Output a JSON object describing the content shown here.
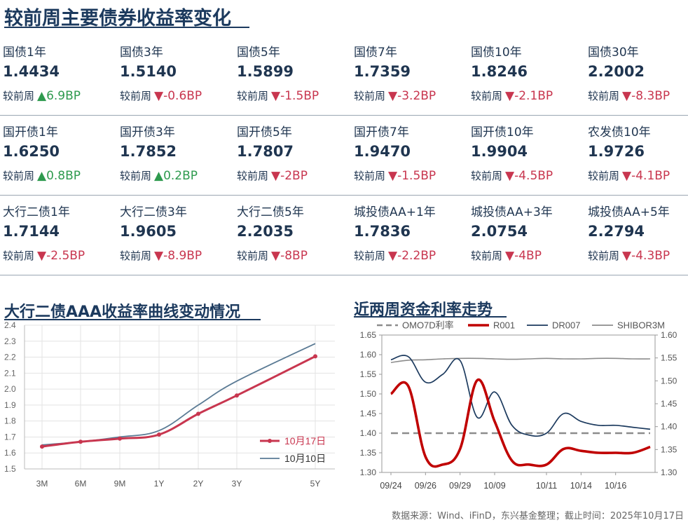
{
  "header": {
    "title": "较前周主要债券收益率变化"
  },
  "change_label": "较前周",
  "colors": {
    "up": "#2e9a4e",
    "down": "#c8364f",
    "navy": "#1c3a5e",
    "red": "#c8364f",
    "slate": "#5a7a94"
  },
  "bond_grid": [
    [
      {
        "name": "国债1年",
        "value": "1.4434",
        "direction": "up",
        "change": "▲6.9BP"
      },
      {
        "name": "国债3年",
        "value": "1.5140",
        "direction": "down",
        "change": "▼-0.6BP"
      },
      {
        "name": "国债5年",
        "value": "1.5899",
        "direction": "down",
        "change": "▼-1.5BP"
      },
      {
        "name": "国债7年",
        "value": "1.7359",
        "direction": "down",
        "change": "▼-3.2BP"
      },
      {
        "name": "国债10年",
        "value": "1.8246",
        "direction": "down",
        "change": "▼-2.1BP"
      },
      {
        "name": "国债30年",
        "value": "2.2002",
        "direction": "down",
        "change": "▼-8.3BP"
      }
    ],
    [
      {
        "name": "国开债1年",
        "value": "1.6250",
        "direction": "up",
        "change": "▲0.8BP"
      },
      {
        "name": "国开债3年",
        "value": "1.7852",
        "direction": "up",
        "change": "▲0.2BP"
      },
      {
        "name": "国开债5年",
        "value": "1.7807",
        "direction": "down",
        "change": "▼-2BP"
      },
      {
        "name": "国开债7年",
        "value": "1.9470",
        "direction": "down",
        "change": "▼-1.5BP"
      },
      {
        "name": "国开债10年",
        "value": "1.9904",
        "direction": "down",
        "change": "▼-4.5BP"
      },
      {
        "name": "农发债10年",
        "value": "1.9726",
        "direction": "down",
        "change": "▼-4.1BP"
      }
    ],
    [
      {
        "name": "大行二债1年",
        "value": "1.7144",
        "direction": "down",
        "change": "▼-2.5BP"
      },
      {
        "name": "大行二债3年",
        "value": "1.9605",
        "direction": "down",
        "change": "▼-8.9BP"
      },
      {
        "name": "大行二债5年",
        "value": "2.2035",
        "direction": "down",
        "change": "▼-8BP"
      },
      {
        "name": "城投债AA+1年",
        "value": "1.7836",
        "direction": "down",
        "change": "▼-2.2BP"
      },
      {
        "name": "城投债AA+3年",
        "value": "2.0754",
        "direction": "down",
        "change": "▼-4BP"
      },
      {
        "name": "城投债AA+5年",
        "value": "2.2794",
        "direction": "down",
        "change": "▼-4.3BP"
      }
    ]
  ],
  "footer": {
    "source": "数据来源：Wind、iFinD，东兴基金整理；截止时间：2025年10月17日"
  },
  "chart_data": [
    {
      "type": "line",
      "title": "大行二债AAA收益率曲线变动情况",
      "x_tick_labels": [
        "3M",
        "6M",
        "9M",
        "1Y",
        "2Y",
        "3Y",
        "5Y"
      ],
      "x_positions_years": [
        0.25,
        0.5,
        0.75,
        1,
        2,
        3,
        5
      ],
      "ylim": [
        1.5,
        2.4
      ],
      "y_ticks": [
        "1.5",
        "1.6",
        "1.7",
        "1.8",
        "1.9",
        "2.0",
        "2.1",
        "2.2",
        "2.3",
        "2.4"
      ],
      "grid": true,
      "legend_position": "bottom-right",
      "series": [
        {
          "name": "10月17日",
          "color": "#c8364f",
          "markers": true,
          "values": [
            1.64,
            1.67,
            1.69,
            1.715,
            1.845,
            1.96,
            2.205
          ]
        },
        {
          "name": "10月10日",
          "color": "#5a7a94",
          "markers": false,
          "values": [
            1.65,
            1.67,
            1.7,
            1.74,
            1.9,
            2.05,
            2.285
          ]
        }
      ]
    },
    {
      "type": "line",
      "title": "近两周资金利率走势",
      "x_tick_labels": [
        "09/24",
        "09/26",
        "09/29",
        "10/09",
        "10/11",
        "10/14",
        "10/16"
      ],
      "n_points": 16,
      "x_tick_indices": [
        0,
        2,
        4,
        6,
        9,
        11,
        13
      ],
      "ylim_left": [
        1.3,
        1.65
      ],
      "y_ticks_left": [
        "1.30",
        "1.35",
        "1.40",
        "1.45",
        "1.50",
        "1.55",
        "1.60",
        "1.65"
      ],
      "ylim_right": [
        1.3,
        1.6
      ],
      "y_ticks_right": [
        "1.30",
        "1.35",
        "1.40",
        "1.45",
        "1.50",
        "1.55",
        "1.60"
      ],
      "legend_position": "top",
      "series": [
        {
          "name": "OMO7D利率",
          "axis": "left",
          "color": "#8c8c8c",
          "dash": true,
          "values": [
            1.4,
            1.4,
            1.4,
            1.4,
            1.4,
            1.4,
            1.4,
            1.4,
            1.4,
            1.4,
            1.4,
            1.4,
            1.4,
            1.4,
            1.4,
            1.4
          ]
        },
        {
          "name": "R001",
          "axis": "left",
          "color": "#c00000",
          "values": [
            1.5,
            1.52,
            1.34,
            1.32,
            1.36,
            1.535,
            1.43,
            1.33,
            1.32,
            1.32,
            1.36,
            1.355,
            1.35,
            1.35,
            1.35,
            1.365
          ]
        },
        {
          "name": "DR007",
          "axis": "left",
          "color": "#1c3a5e",
          "values": [
            1.587,
            1.595,
            1.53,
            1.55,
            1.585,
            1.44,
            1.505,
            1.42,
            1.395,
            1.4,
            1.45,
            1.43,
            1.42,
            1.42,
            1.415,
            1.41
          ]
        },
        {
          "name": "SHIBOR3M",
          "axis": "right",
          "color": "#8c8c8c",
          "values": [
            1.54,
            1.545,
            1.546,
            1.548,
            1.549,
            1.549,
            1.548,
            1.547,
            1.548,
            1.549,
            1.548,
            1.548,
            1.549,
            1.549,
            1.548,
            1.548
          ]
        }
      ]
    }
  ]
}
